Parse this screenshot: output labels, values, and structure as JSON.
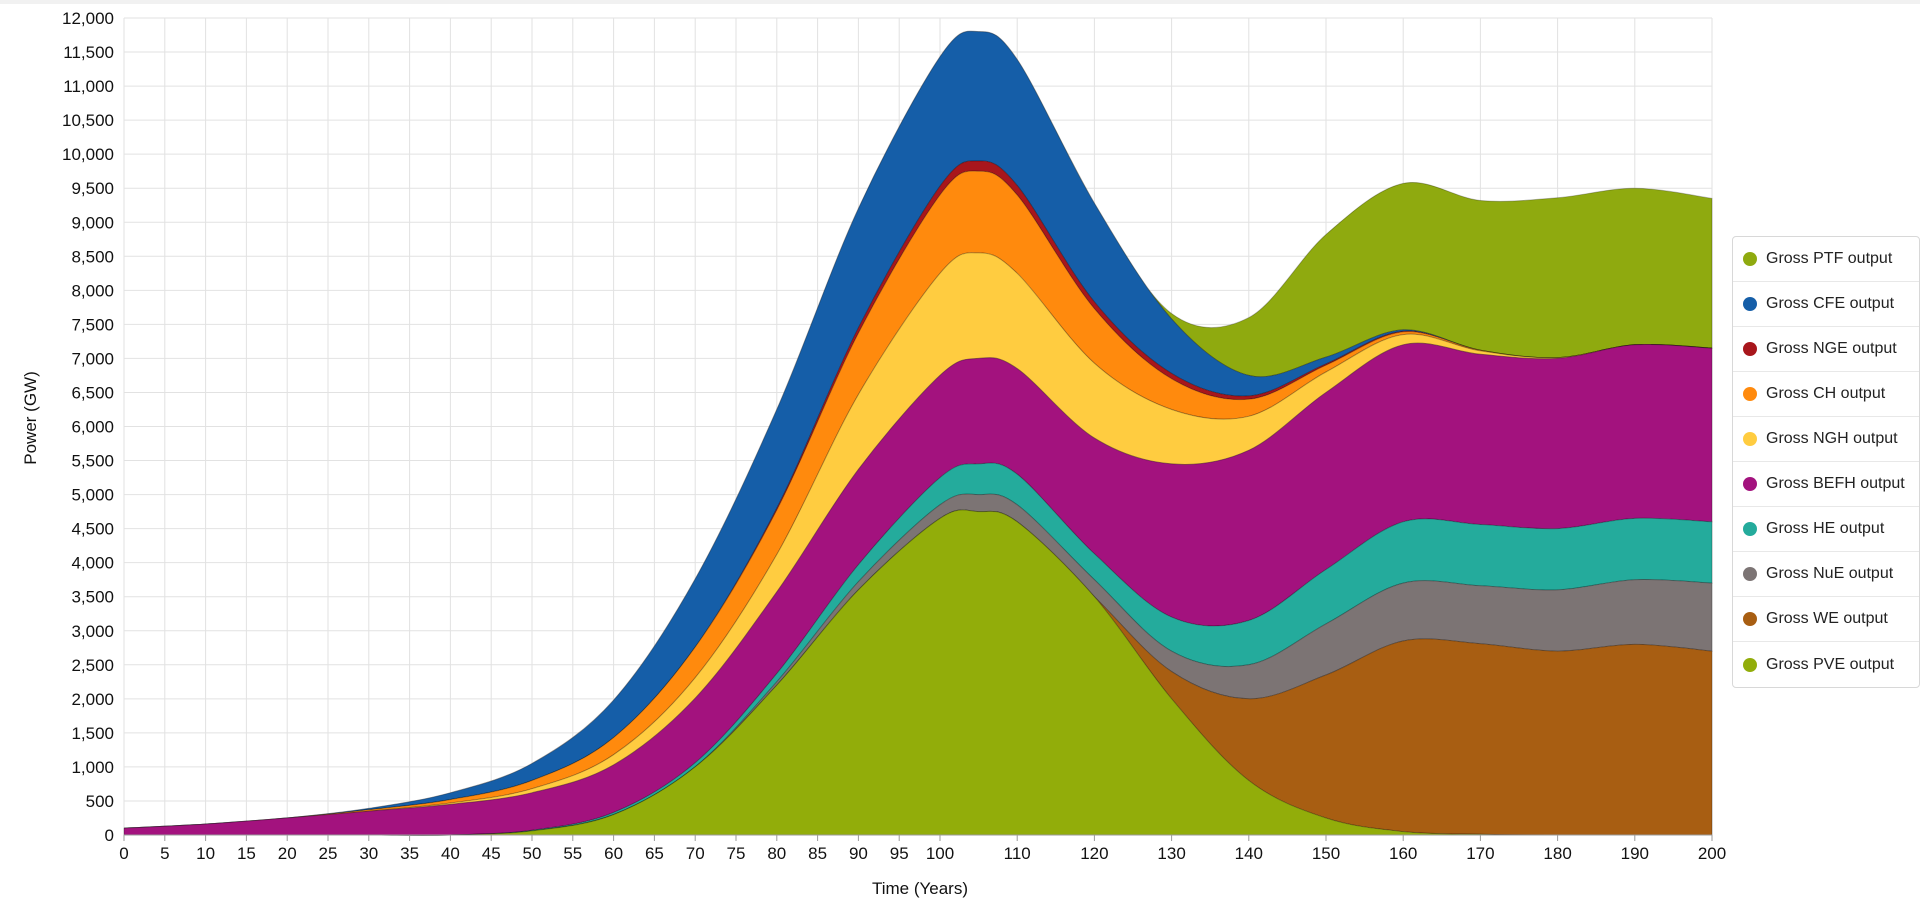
{
  "chart_data": {
    "type": "area",
    "stacked": true,
    "xlabel": "Time (Years)",
    "ylabel": "Power (GW)",
    "xlim": [
      0,
      200
    ],
    "ylim": [
      0,
      12000
    ],
    "grid": true,
    "legend_position": "right",
    "x_ticks": [
      0,
      5,
      10,
      15,
      20,
      25,
      30,
      35,
      40,
      45,
      50,
      55,
      60,
      65,
      70,
      75,
      80,
      85,
      90,
      95,
      100,
      110,
      120,
      130,
      140,
      150,
      160,
      170,
      180,
      190,
      200
    ],
    "y_ticks": [
      0,
      500,
      1000,
      1500,
      2000,
      2500,
      3000,
      3500,
      4000,
      4500,
      5000,
      5500,
      6000,
      6500,
      7000,
      7500,
      8000,
      8500,
      9000,
      9500,
      10000,
      10500,
      11000,
      11500,
      12000
    ],
    "x_tick_labels": [
      "0",
      "5",
      "10",
      "15",
      "20",
      "25",
      "30",
      "35",
      "40",
      "45",
      "50",
      "55",
      "60",
      "65",
      "70",
      "75",
      "80",
      "85",
      "90",
      "95",
      "100",
      "110",
      "120",
      "130",
      "140",
      "150",
      "160",
      "170",
      "180",
      "190",
      "200"
    ],
    "y_tick_labels": [
      "0",
      "500",
      "1,000",
      "1,500",
      "2,000",
      "2,500",
      "3,000",
      "3,500",
      "4,000",
      "4,500",
      "5,000",
      "5,500",
      "6,000",
      "6,500",
      "7,000",
      "7,500",
      "8,000",
      "8,500",
      "9,000",
      "9,500",
      "10,000",
      "10,500",
      "11,000",
      "11,500",
      "12,000"
    ],
    "x": [
      0,
      10,
      20,
      30,
      40,
      50,
      60,
      70,
      80,
      90,
      100,
      105,
      110,
      120,
      130,
      140,
      150,
      160,
      170,
      180,
      190,
      200
    ],
    "series": [
      {
        "name": "Gross PVE output",
        "color": "#92ad0a",
        "values": [
          0,
          0,
          0,
          0,
          0,
          60,
          300,
          1000,
          2200,
          3600,
          4650,
          4750,
          4600,
          3500,
          2000,
          800,
          250,
          50,
          10,
          0,
          0,
          0
        ]
      },
      {
        "name": "Gross WE output",
        "color": "#a85e12",
        "values": [
          0,
          0,
          0,
          0,
          0,
          0,
          0,
          0,
          0,
          0,
          0,
          0,
          0,
          0,
          400,
          1200,
          2100,
          2800,
          2800,
          2700,
          2800,
          2700
        ]
      },
      {
        "name": "Gross NuE output",
        "color": "#7c7474",
        "values": [
          0,
          0,
          0,
          0,
          0,
          0,
          0,
          0,
          50,
          120,
          200,
          250,
          250,
          250,
          300,
          500,
          750,
          850,
          850,
          900,
          950,
          1000
        ]
      },
      {
        "name": "Gross HE output",
        "color": "#24ab9c",
        "values": [
          0,
          0,
          0,
          0,
          0,
          10,
          30,
          60,
          120,
          250,
          400,
          450,
          450,
          380,
          500,
          650,
          800,
          900,
          900,
          900,
          900,
          900
        ]
      },
      {
        "name": "Gross BEFH output",
        "color": "#a3127e",
        "values": [
          100,
          160,
          250,
          350,
          450,
          550,
          700,
          950,
          1200,
          1400,
          1500,
          1550,
          1550,
          1700,
          2250,
          2500,
          2600,
          2600,
          2500,
          2500,
          2550,
          2550
        ]
      },
      {
        "name": "Gross NGH output",
        "color": "#ffcc40",
        "values": [
          0,
          0,
          0,
          0,
          20,
          60,
          150,
          300,
          550,
          1100,
          1500,
          1550,
          1400,
          1100,
          800,
          500,
          300,
          150,
          50,
          10,
          0,
          0
        ]
      },
      {
        "name": "Gross CH output",
        "color": "#ff8a0d",
        "values": [
          0,
          0,
          0,
          20,
          50,
          120,
          250,
          450,
          650,
          900,
          1150,
          1200,
          1150,
          800,
          450,
          250,
          100,
          40,
          10,
          0,
          0,
          0
        ]
      },
      {
        "name": "Gross NGE output",
        "color": "#a8161c",
        "values": [
          0,
          0,
          0,
          0,
          0,
          0,
          0,
          0,
          30,
          80,
          130,
          150,
          140,
          100,
          80,
          50,
          20,
          10,
          0,
          0,
          0,
          0
        ]
      },
      {
        "name": "Gross CFE output",
        "color": "#155ea8",
        "values": [
          0,
          0,
          0,
          20,
          100,
          250,
          550,
          1000,
          1450,
          1750,
          1900,
          1900,
          1850,
          1450,
          800,
          300,
          100,
          20,
          0,
          0,
          0,
          0
        ]
      },
      {
        "name": "Gross PTF output",
        "color": "#8faa0f",
        "values": [
          0,
          0,
          0,
          0,
          0,
          0,
          0,
          0,
          0,
          0,
          0,
          0,
          0,
          0,
          80,
          850,
          1800,
          2150,
          2200,
          2350,
          2300,
          2200
        ]
      }
    ]
  }
}
